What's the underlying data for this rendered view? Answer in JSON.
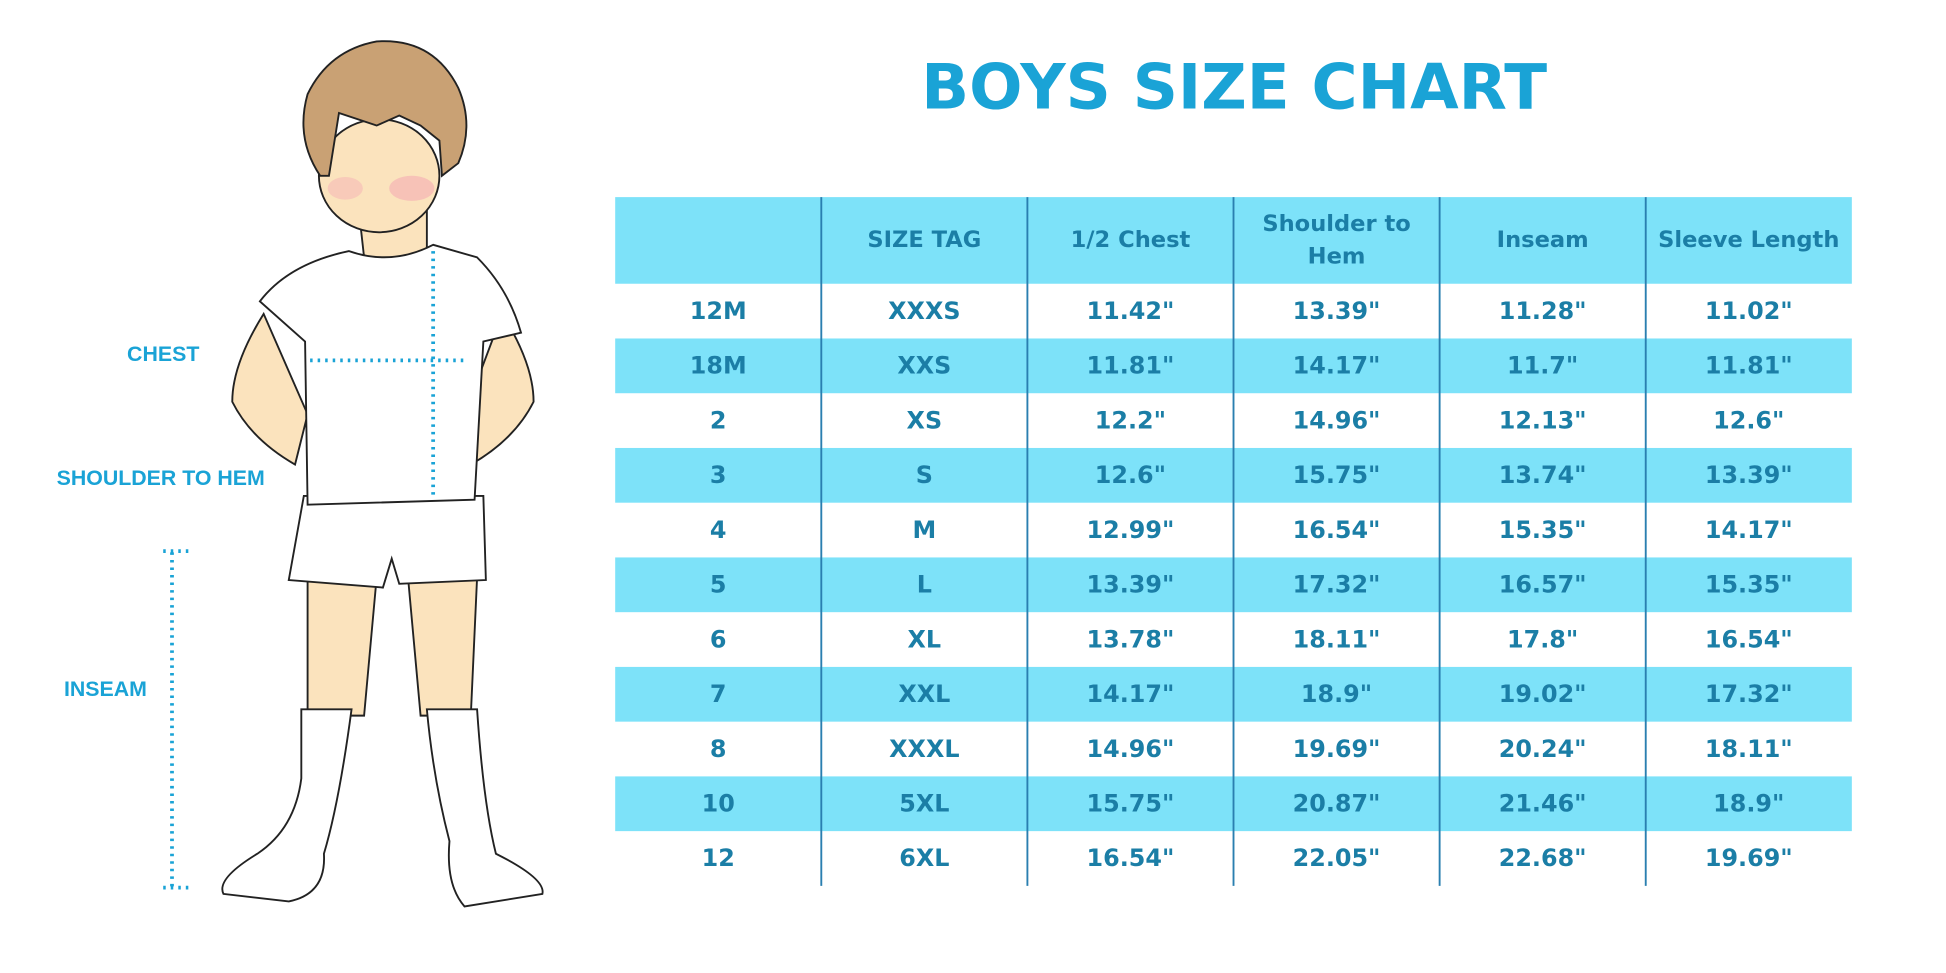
{
  "title": "BOYS SIZE CHART",
  "figure_labels": {
    "chest": "CHEST",
    "shoulder_to_hem": "SHOULDER TO HEM",
    "inseam": "INSEAM"
  },
  "table": {
    "header": [
      "SIZE TAG",
      "1/2 Chest",
      "Shoulder to Hem",
      "Inseam",
      "Sleeve Length"
    ],
    "rows": [
      [
        "12M",
        "XXXS",
        "11.42\"",
        "13.39\"",
        "11.28\"",
        "11.02\""
      ],
      [
        "18M",
        "XXS",
        "11.81\"",
        "14.17\"",
        "11.7\"",
        "11.81\""
      ],
      [
        "2",
        "XS",
        "12.2\"",
        "14.96\"",
        "12.13\"",
        "12.6\""
      ],
      [
        "3",
        "S",
        "12.6\"",
        "15.75\"",
        "13.74\"",
        "13.39\""
      ],
      [
        "4",
        "M",
        "12.99\"",
        "16.54\"",
        "15.35\"",
        "14.17\""
      ],
      [
        "5",
        "L",
        "13.39\"",
        "17.32\"",
        "16.57\"",
        "15.35\""
      ],
      [
        "6",
        "XL",
        "13.78\"",
        "18.11\"",
        "17.8\"",
        "16.54\""
      ],
      [
        "7",
        "XXL",
        "14.17\"",
        "18.9\"",
        "19.02\"",
        "17.32\""
      ],
      [
        "8",
        "XXXL",
        "14.96\"",
        "19.69\"",
        "20.24\"",
        "18.11\""
      ],
      [
        "10",
        "5XL",
        "15.75\"",
        "20.87\"",
        "21.46\"",
        "18.9\""
      ],
      [
        "12",
        "6XL",
        "16.54\"",
        "22.05\"",
        "22.68\"",
        "19.69\""
      ]
    ]
  }
}
